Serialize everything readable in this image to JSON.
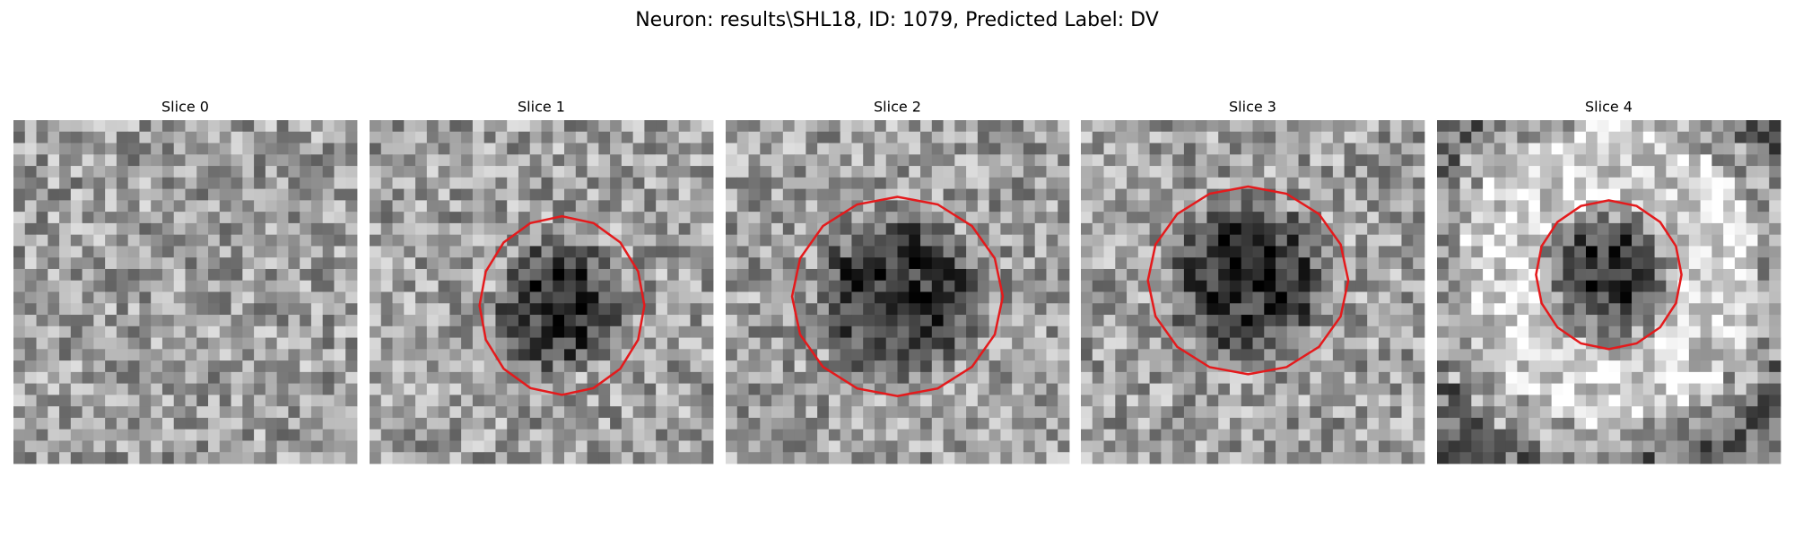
{
  "header": {
    "title": "Neuron: results\\SHL18, ID: 1079, Predicted Label: DV"
  },
  "panels": [
    {
      "title": "Slice 0"
    },
    {
      "title": "Slice 1"
    },
    {
      "title": "Slice 2"
    },
    {
      "title": "Slice 3"
    },
    {
      "title": "Slice 4"
    }
  ]
}
